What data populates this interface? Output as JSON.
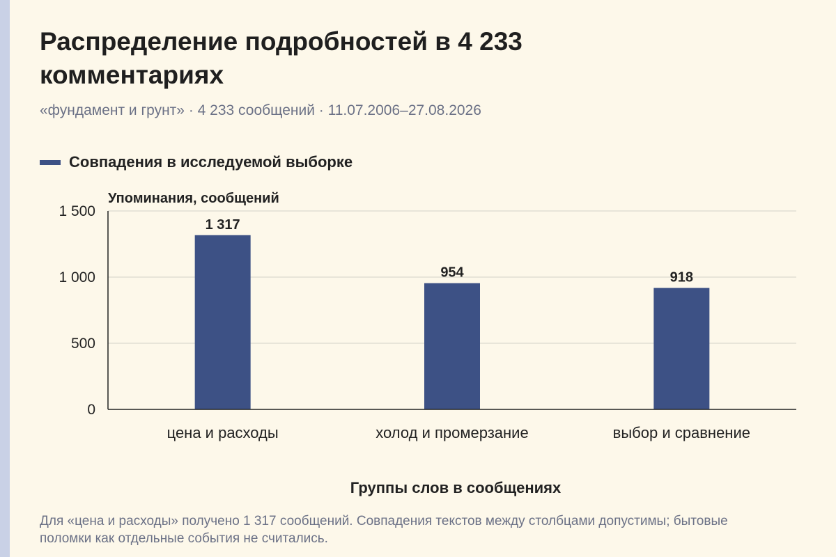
{
  "title": "Распределение подробностей в 4 233 комментариях",
  "subtitle": "«фундамент и грунт» · 4 233 сообщений · 11.07.2006–27.08.2026",
  "footnote": "Для «цена и расходы» получено 1 317 сообщений. Совпадения текстов между столбцами допустимы; бытовые поломки как отдельные события не считались.",
  "colors": {
    "bar": "#3d5185",
    "background": "#fdf8ea",
    "stripe": "#c9d1e6"
  },
  "chart_data": {
    "type": "bar",
    "categories": [
      "цена и расходы",
      "холод и промерзание",
      "выбор и сравнение"
    ],
    "series": [
      {
        "name": "Совпадения в исследуемой выборке",
        "values": [
          1317,
          954,
          918
        ],
        "value_labels": [
          "1 317",
          "954",
          "918"
        ]
      }
    ],
    "xlabel": "Группы слов в сообщениях",
    "ylabel": "Упоминания, сообщений",
    "ylim": [
      0,
      1500
    ],
    "yticks": [
      0,
      500,
      1000,
      1500
    ],
    "ytick_labels": [
      "0",
      "500",
      "1 000",
      "1 500"
    ],
    "grid": true,
    "legend": "top-left"
  }
}
